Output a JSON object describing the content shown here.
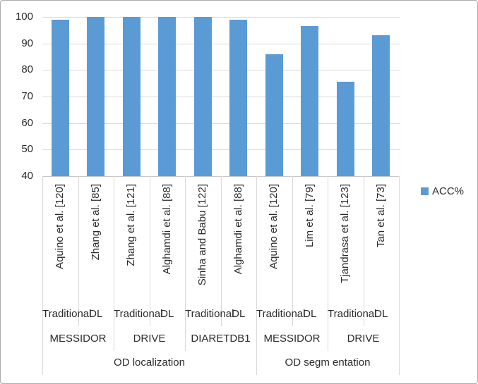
{
  "chart_data": {
    "type": "bar",
    "title": "",
    "legend_label": "ACC%",
    "legend_position": "right",
    "grid": true,
    "ylim": [
      40,
      100
    ],
    "yticks": [
      40,
      50,
      60,
      70,
      80,
      90,
      100
    ],
    "bar_color": "#5B9BD5",
    "series": [
      {
        "name": "ACC%",
        "values": [
          99,
          100,
          100,
          100,
          100,
          99,
          86,
          96.5,
          75.5,
          93
        ]
      }
    ],
    "bars": [
      {
        "author": "Aquino et al. [120]",
        "method": "Traditional",
        "dataset": "MESSIDOR",
        "task": "OD localization",
        "value": 99
      },
      {
        "author": "Zhang et al. [85]",
        "method": "DL",
        "dataset": "MESSIDOR",
        "task": "OD localization",
        "value": 100
      },
      {
        "author": "Zhang et al. [121]",
        "method": "Traditional",
        "dataset": "DRIVE",
        "task": "OD localization",
        "value": 100
      },
      {
        "author": "Alghamdi et al. [88]",
        "method": "DL",
        "dataset": "DRIVE",
        "task": "OD localization",
        "value": 100
      },
      {
        "author": "Sinha and Babu [122]",
        "method": "Traditional",
        "dataset": "DIARETDB1",
        "task": "OD localization",
        "value": 100
      },
      {
        "author": "Alghamdi et al. [88]",
        "method": "DL",
        "dataset": "DIARETDB1",
        "task": "OD localization",
        "value": 99
      },
      {
        "author": "Aquino et al. [120]",
        "method": "Traditional",
        "dataset": "MESSIDOR",
        "task": "OD segm entation",
        "value": 86
      },
      {
        "author": "Lim et al. [79]",
        "method": "DL",
        "dataset": "MESSIDOR",
        "task": "OD segm entation",
        "value": 96.5
      },
      {
        "author": "Tjandrasa et al. [123]",
        "method": "Traditional",
        "dataset": "DRIVE",
        "task": "OD segm entation",
        "value": 75.5
      },
      {
        "author": "Tan et al. [73]",
        "method": "DL",
        "dataset": "DRIVE",
        "task": "OD segm entation",
        "value": 93
      }
    ],
    "dataset_groups": [
      {
        "label": "MESSIDOR",
        "span": 2
      },
      {
        "label": "DRIVE",
        "span": 2
      },
      {
        "label": "DIARETDB1",
        "span": 2
      },
      {
        "label": "MESSIDOR",
        "span": 2
      },
      {
        "label": "DRIVE",
        "span": 2
      }
    ],
    "task_groups": [
      {
        "label": "OD localization",
        "span": 6
      },
      {
        "label": "OD segm entation",
        "span": 4
      }
    ]
  },
  "colors": {
    "bar": "#5B9BD5",
    "gridline": "#D9D9D9",
    "text": "#2B2B2B"
  }
}
